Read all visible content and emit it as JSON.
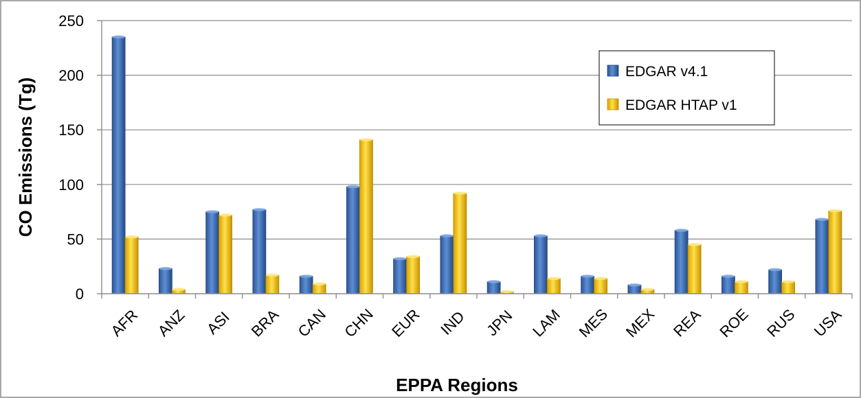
{
  "chart_data": {
    "type": "bar",
    "title": "",
    "xlabel": "EPPA Regions",
    "ylabel": "CO Emissions (Tg)",
    "ylim": [
      0,
      250
    ],
    "yticks": [
      0,
      50,
      100,
      150,
      200,
      250
    ],
    "grid": true,
    "legend_position": "top-right",
    "categories": [
      "AFR",
      "ANZ",
      "ASI",
      "BRA",
      "CAN",
      "CHN",
      "EUR",
      "IND",
      "JPN",
      "LAM",
      "MES",
      "MEX",
      "REA",
      "ROE",
      "RUS",
      "USA"
    ],
    "series": [
      {
        "name": "EDGAR v4.1",
        "color": "#3F6FB5",
        "values": [
          235,
          23,
          75,
          77,
          16,
          98,
          32,
          53,
          11,
          53,
          16,
          8,
          58,
          16,
          22,
          68
        ]
      },
      {
        "name": "EDGAR HTAP v1",
        "color": "#F2BE0C",
        "values": [
          52,
          4,
          72,
          17,
          9,
          141,
          34,
          92,
          2,
          14,
          14,
          4,
          45,
          11,
          11,
          76
        ]
      }
    ]
  }
}
